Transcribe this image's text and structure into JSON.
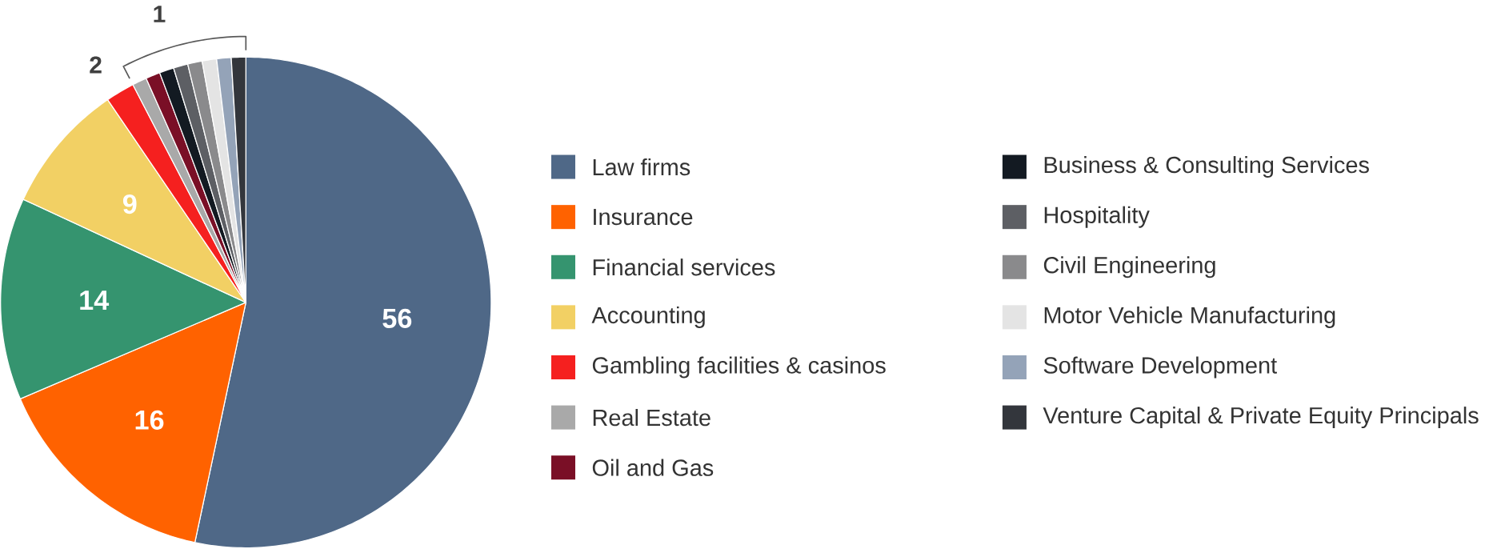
{
  "chart_data": {
    "type": "pie",
    "categories": [
      "Law firms",
      "Insurance",
      "Financial services",
      "Accounting",
      "Gambling facilities & casinos",
      "Real Estate",
      "Oil and Gas",
      "Business & Consulting Services",
      "Hospitality",
      "Civil Engineering",
      "Motor Vehicle Manufacturing",
      "Software Development",
      "Venture Capital & Private Equity Principals"
    ],
    "values": [
      56,
      16,
      14,
      9,
      2,
      1,
      1,
      1,
      1,
      1,
      1,
      1,
      1
    ],
    "colors": [
      "#4f6887",
      "#ff6200",
      "#35946f",
      "#f2d064",
      "#f5201f",
      "#a9a9a9",
      "#7a0f26",
      "#131a22",
      "#5d5f64",
      "#8a8a8c",
      "#e4e4e4",
      "#94a3b8",
      "#33363c"
    ],
    "value_labels": [
      "56",
      "16",
      "14",
      "9",
      "2",
      null,
      null,
      null,
      null,
      null,
      null,
      null,
      null
    ],
    "annotations": [
      "1"
    ],
    "legend": "right"
  }
}
